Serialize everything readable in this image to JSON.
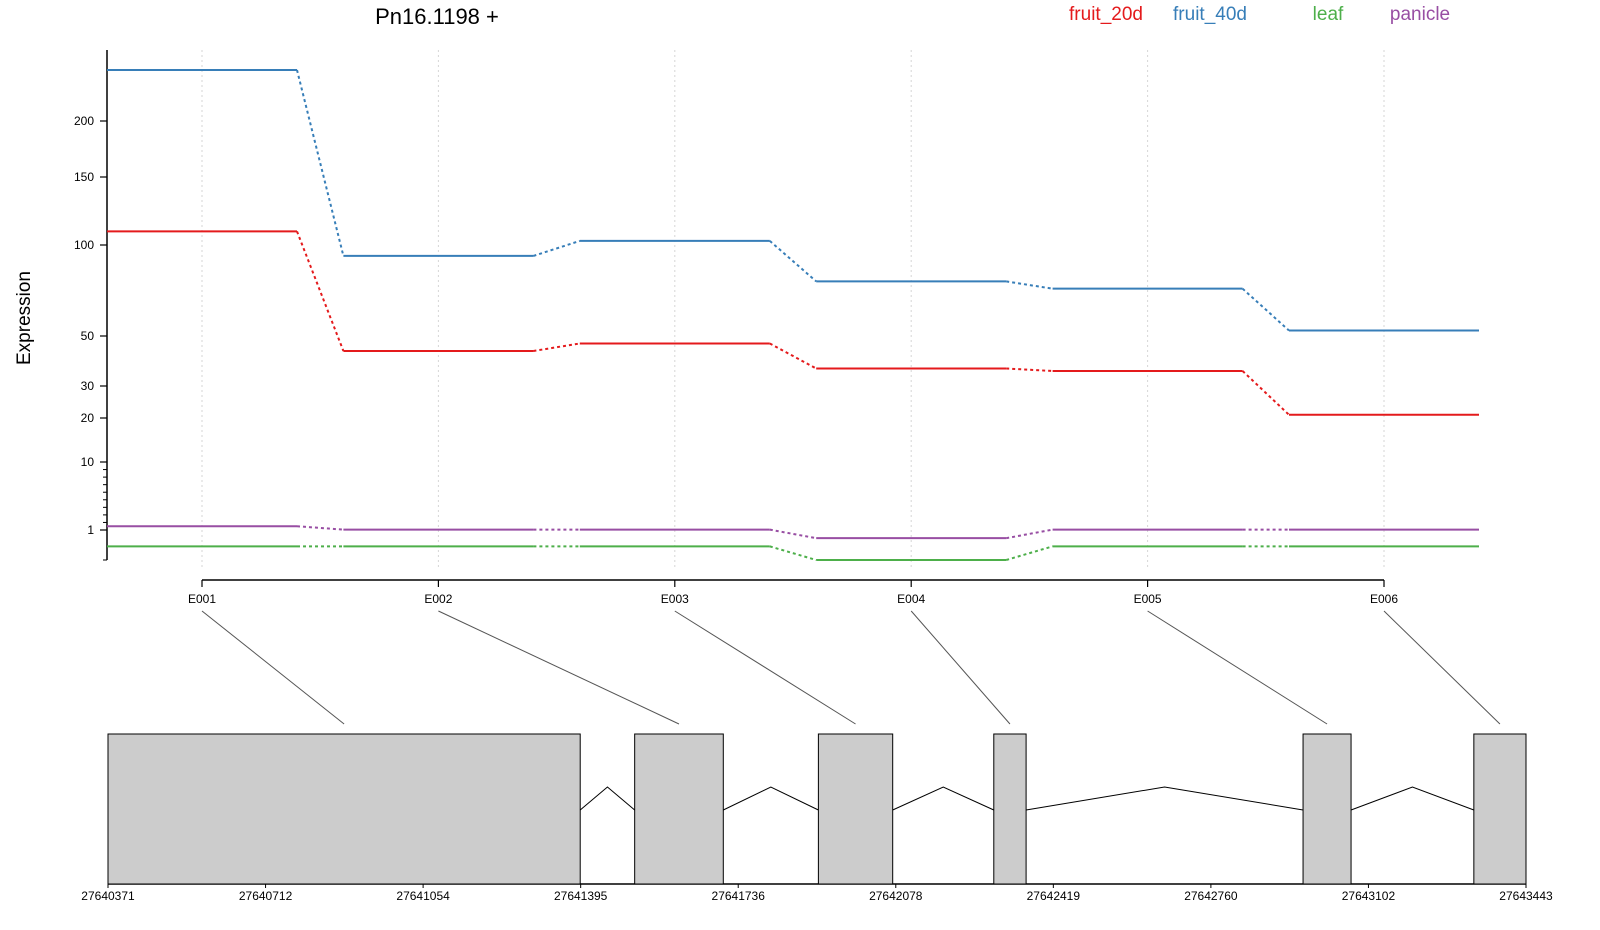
{
  "chart_data": {
    "type": "line",
    "title": "Pn16.1198 +",
    "ylabel": "Expression",
    "y_scale": "log-like",
    "grid": true,
    "legend_placement": "top-right",
    "categories": [
      "E001",
      "E002",
      "E003",
      "E004",
      "E005",
      "E006"
    ],
    "y_ticks": [
      1,
      10,
      20,
      30,
      50,
      100,
      150,
      200
    ],
    "series": [
      {
        "name": "fruit_20d",
        "color": "#e41a1c",
        "values": [
          110,
          44,
          47,
          37,
          36,
          21
        ]
      },
      {
        "name": "fruit_40d",
        "color": "#377eb8",
        "values": [
          240,
          94,
          103,
          80,
          76,
          53
        ]
      },
      {
        "name": "leaf",
        "color": "#4daf4a",
        "values": [
          0.7,
          0.7,
          0.7,
          0.45,
          0.7,
          0.7
        ]
      },
      {
        "name": "panicle",
        "color": "#984ea3",
        "values": [
          1.5,
          1.05,
          1.05,
          0.85,
          1.05,
          1.05
        ]
      }
    ],
    "gene_model": {
      "coordinate_ticks": [
        "27640371",
        "27640712",
        "27641054",
        "27641395",
        "27641736",
        "27642078",
        "27642419",
        "27642760",
        "27643102",
        "27643443"
      ],
      "exons": [
        {
          "label": "E001",
          "start": 27640371,
          "end": 27641394
        },
        {
          "label": "E002",
          "start": 27641512,
          "end": 27641704
        },
        {
          "label": "E003",
          "start": 27641910,
          "end": 27642071
        },
        {
          "label": "E004",
          "start": 27642290,
          "end": 27642360
        },
        {
          "label": "E005",
          "start": 27642960,
          "end": 27643064
        },
        {
          "label": "E006",
          "start": 27643330,
          "end": 27643443
        }
      ]
    }
  }
}
